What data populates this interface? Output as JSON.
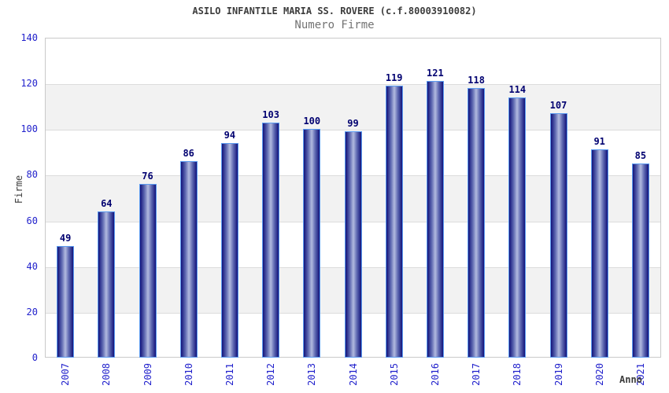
{
  "chart_data": {
    "type": "bar",
    "title": "ASILO INFANTILE MARIA SS. ROVERE (c.f.80003910082)",
    "subtitle": "Numero Firme",
    "xlabel": "Anno",
    "ylabel": "Firme",
    "categories": [
      "2007",
      "2008",
      "2009",
      "2010",
      "2011",
      "2012",
      "2013",
      "2014",
      "2015",
      "2016",
      "2017",
      "2018",
      "2019",
      "2020",
      "2021"
    ],
    "values": [
      49,
      64,
      76,
      86,
      94,
      103,
      100,
      99,
      119,
      121,
      118,
      114,
      107,
      91,
      85
    ],
    "ylim": [
      0,
      140
    ],
    "ytick_step": 20,
    "grid": "horizontal alternating bands",
    "legend": "none",
    "colors": {
      "bar_dark": "#12127a",
      "bar_mid": "#5f6ab2",
      "bar_highlight": "#b2badf",
      "bar_border": "#5b9bf0",
      "value_label": "#000070",
      "tick_label": "#2222cc",
      "band_gray": "#f2f2f2",
      "gridline": "#dcdcdc",
      "plot_border": "#c9c9c9",
      "title_text": "#3c3c3c",
      "subtitle_text": "#737373"
    }
  }
}
